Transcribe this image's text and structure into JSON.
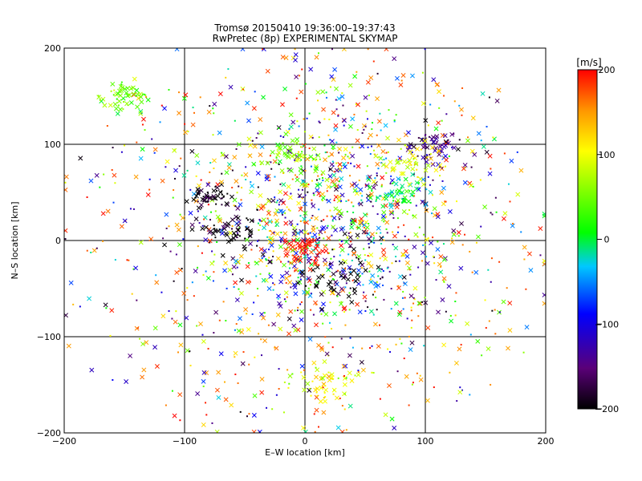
{
  "chart_data": {
    "type": "scatter",
    "title": "Tromsø 20150410 19:36:00–19:37:43",
    "subtitle": "RwPretec (8p) EXPERIMENTAL SKYMAP",
    "xlabel": "E–W location [km]",
    "ylabel": "N–S location [km]",
    "xlim": [
      -200,
      200
    ],
    "ylim": [
      -200,
      200
    ],
    "xticks": [
      -200,
      -100,
      0,
      100,
      200
    ],
    "yticks": [
      -200,
      -100,
      0,
      100,
      200
    ],
    "xtick_labels": [
      "−200",
      "−100",
      "0",
      "100",
      "200"
    ],
    "ytick_labels": [
      "−200",
      "−100",
      "0",
      "100",
      "200"
    ],
    "grid": true,
    "marker_types": [
      "x",
      "dot"
    ],
    "colorbar": {
      "label": "[m/s]",
      "range": [
        -200,
        200
      ],
      "ticks": [
        200,
        100,
        0,
        -100,
        -200
      ],
      "tick_labels": [
        "200",
        "100",
        "0",
        "−100",
        "−200"
      ],
      "colormap": [
        "#000000",
        "#5a0078",
        "#0000ff",
        "#00c8ff",
        "#00ff00",
        "#ffff00",
        "#ff9600",
        "#ff0000"
      ],
      "placement": "right"
    },
    "clusters": [
      {
        "x": 80,
        "y": 50,
        "spread": 12,
        "velocity": 0
      },
      {
        "x": 110,
        "y": 95,
        "spread": 12,
        "velocity": -150
      },
      {
        "x": 85,
        "y": 80,
        "spread": 15,
        "velocity": 100
      },
      {
        "x": -60,
        "y": 10,
        "spread": 12,
        "velocity": -200
      },
      {
        "x": -80,
        "y": 45,
        "spread": 8,
        "velocity": -200
      },
      {
        "x": 30,
        "y": -40,
        "spread": 20,
        "velocity": -200
      },
      {
        "x": 0,
        "y": -10,
        "spread": 12,
        "velocity": 200
      },
      {
        "x": -150,
        "y": 150,
        "spread": 10,
        "velocity": 50
      },
      {
        "x": 20,
        "y": -150,
        "spread": 15,
        "velocity": 100
      },
      {
        "x": -10,
        "y": 90,
        "spread": 15,
        "velocity": 50
      }
    ]
  }
}
